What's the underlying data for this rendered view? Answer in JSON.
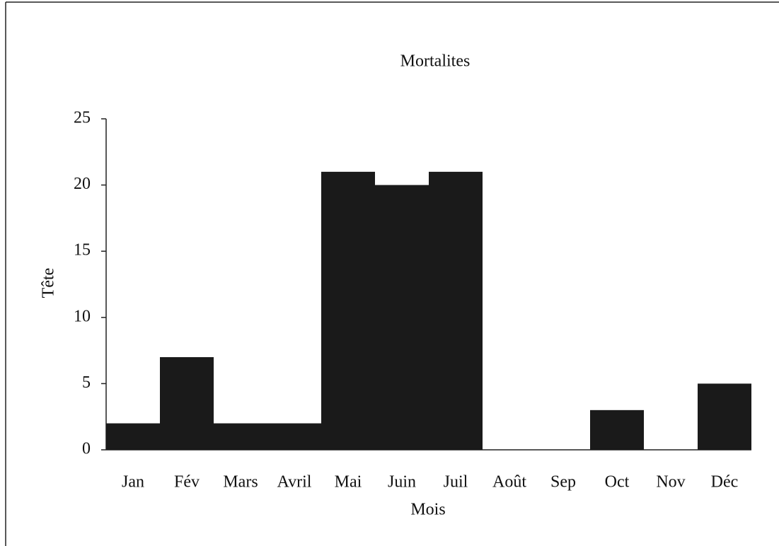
{
  "chart_data": {
    "type": "bar",
    "title": "Mortalites",
    "x_label": "Mois",
    "y_label": "Tête",
    "categories": [
      "Jan",
      "Fév",
      "Mars",
      "Avril",
      "Mai",
      "Juin",
      "Juil",
      "Août",
      "Sep",
      "Oct",
      "Nov",
      "Déc"
    ],
    "values": [
      2,
      7,
      2,
      2,
      21,
      20,
      21,
      0,
      0,
      3,
      0,
      5
    ],
    "color": "#1a1a1a",
    "ylim": [
      0,
      25
    ],
    "yticks": [
      0,
      5,
      10,
      15,
      20,
      25
    ],
    "grid": false
  }
}
